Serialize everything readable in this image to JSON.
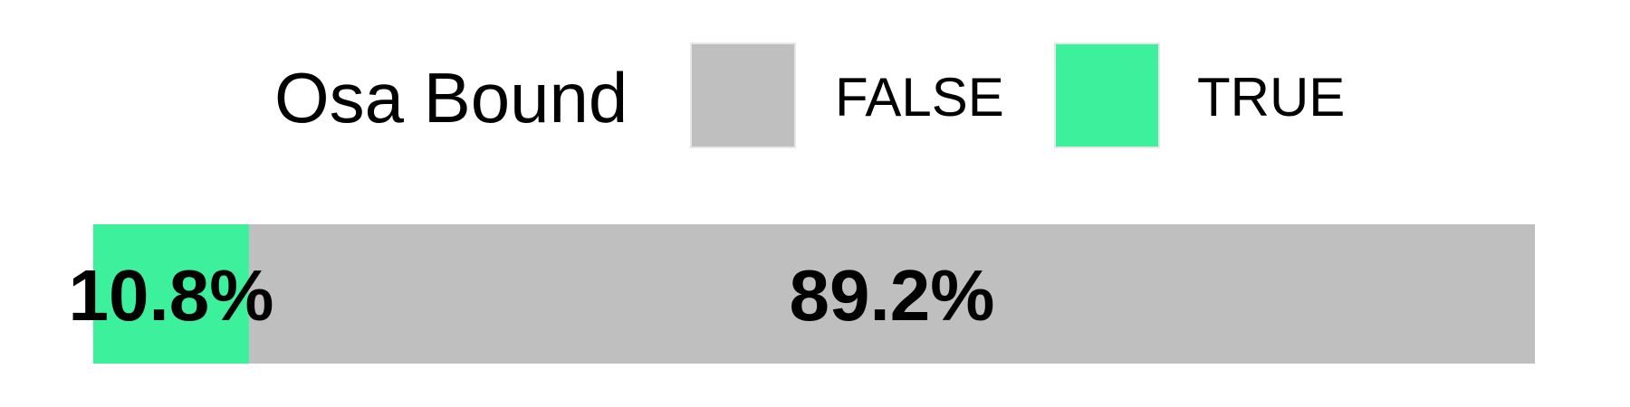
{
  "chart_data": {
    "type": "bar",
    "orientation": "horizontal",
    "stacked": true,
    "normalized": true,
    "legend": {
      "title": "Osa Bound",
      "position": "top",
      "entries": [
        {
          "label": "FALSE",
          "color": "#bfbfbf"
        },
        {
          "label": "TRUE",
          "color": "#3df09b"
        }
      ]
    },
    "series": [
      {
        "name": "TRUE",
        "value": 10.8,
        "color": "#3df09b",
        "label": "10.8%"
      },
      {
        "name": "FALSE",
        "value": 89.2,
        "color": "#bfbfbf",
        "label": "89.2%"
      }
    ],
    "xlim": [
      0,
      100
    ],
    "unit": "%",
    "grid": false
  }
}
